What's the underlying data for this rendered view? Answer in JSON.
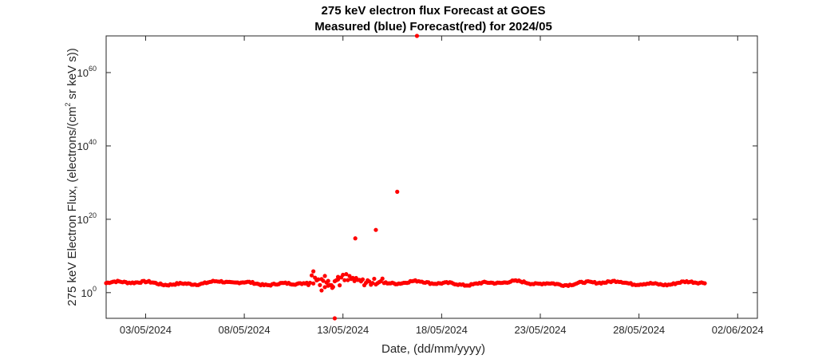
{
  "chart_data": {
    "type": "scatter",
    "title_line1": "275 keV electron flux Forecast at GOES",
    "title_line2": "Measured (blue) Forecast(red) for 2024/05",
    "xlabel": "Date, (dd/mm/yyyy)",
    "ylabel_pre": "275 keV Electron Flux, (electrons/(cm",
    "ylabel_sup": "2",
    "ylabel_post": " sr keV s))",
    "y_scale": "log",
    "xlim": [
      "2024-05-01T00:00",
      "2024-06-03T00:00"
    ],
    "ylim_exponent": [
      -7,
      70
    ],
    "x_ticks": [
      "03/05/2024",
      "08/05/2024",
      "13/05/2024",
      "18/05/2024",
      "23/05/2024",
      "28/05/2024",
      "02/06/2024"
    ],
    "y_ticks": [
      {
        "base": "10",
        "exp": "0"
      },
      {
        "base": "10",
        "exp": "20"
      },
      {
        "base": "10",
        "exp": "40"
      },
      {
        "base": "10",
        "exp": "60"
      }
    ],
    "grid": false,
    "marker_color": "#ff0000",
    "series": [
      {
        "outliers": [
          {
            "x": "2024-05-12T14:00",
            "y_exponent": -7
          },
          {
            "x": "2024-05-13T15:00",
            "y_exponent": 14.8
          },
          {
            "x": "2024-05-14T16:00",
            "y_exponent": 17.1
          },
          {
            "x": "2024-05-15T18:00",
            "y_exponent": 27.5
          },
          {
            "x": "2024-05-16T18:00",
            "y_exponent": 70
          },
          {
            "x": "2024-05-11T22:00",
            "y_exponent": 0.6
          },
          {
            "x": "2024-05-12T06:00",
            "y_exponent": 3.2
          },
          {
            "x": "2024-05-12T11:00",
            "y_exponent": 1.3
          },
          {
            "x": "2024-05-12T18:00",
            "y_exponent": 4.3
          },
          {
            "x": "2024-05-11T12:00",
            "y_exponent": 5.8
          },
          {
            "x": "2024-05-12T02:00",
            "y_exponent": 1.5
          }
        ]
      }
    ]
  }
}
